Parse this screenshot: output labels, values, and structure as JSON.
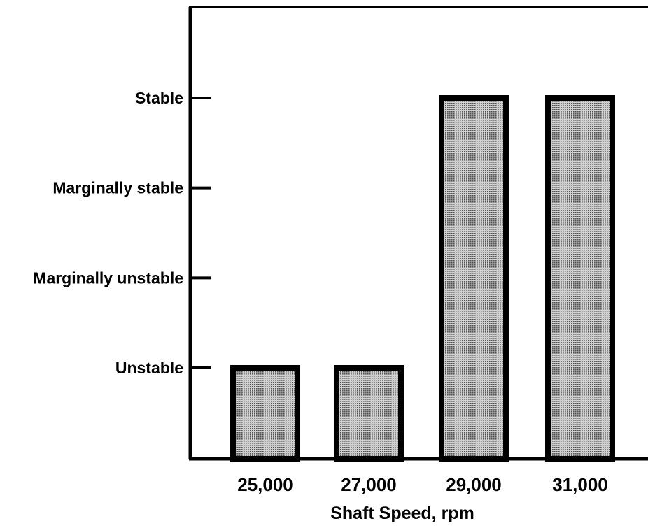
{
  "chart_data": {
    "type": "bar",
    "title": "",
    "xlabel": "Shaft Speed, rpm",
    "ylabel": "",
    "categories": [
      "25,000",
      "27,000",
      "29,000",
      "31,000"
    ],
    "y_tick_labels": [
      "Unstable",
      "Marginally unstable",
      "Marginally stable",
      "Stable"
    ],
    "y_tick_values": [
      1,
      2,
      3,
      4
    ],
    "values": [
      1,
      1,
      4,
      4
    ],
    "value_labels": [
      "Unstable",
      "Unstable",
      "Stable",
      "Stable"
    ],
    "ylim": [
      0,
      5
    ],
    "grid": false,
    "legend": "none",
    "colors": {
      "bar_fill": "#9a9a9a",
      "bar_stroke": "#000000",
      "axis": "#000000"
    }
  }
}
